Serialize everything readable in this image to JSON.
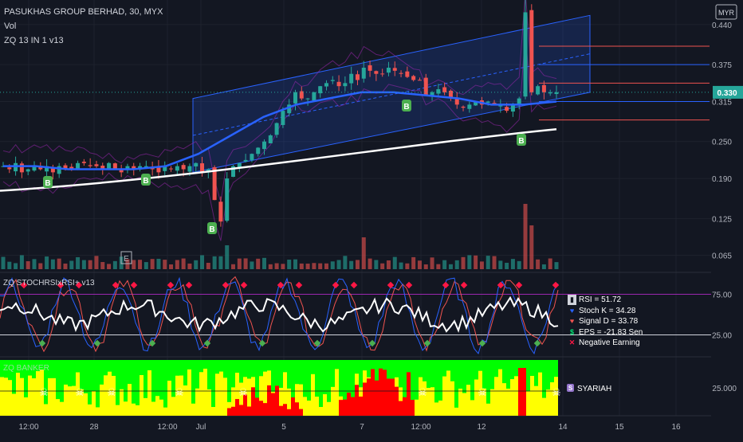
{
  "header": {
    "title": "PASUKHAS GROUP BERHAD, 30, MYX",
    "vol_label": "Vol",
    "indicator": "ZQ 13 IN 1 v13"
  },
  "currency": "MYR",
  "price_axis": {
    "ticks": [
      "0.440",
      "0.375",
      "0.315",
      "0.250",
      "0.190",
      "0.125",
      "0.065"
    ],
    "current_price": "0.330"
  },
  "stoch_pane": {
    "label": "ZQ STOCHRSIxRSI+ v13",
    "ticks": [
      "75.00",
      "25.00"
    ]
  },
  "banker_pane": {
    "label": "ZQ BANKER",
    "tick": "25.000",
    "badge_letter": "S",
    "badge_text": "SYARIAH"
  },
  "legend": {
    "rsi": "RSI = 51.72",
    "stoch_k": "Stoch K = 34.28",
    "signal_d": "Signal D = 33.78",
    "eps": "EPS = -21.83 Sen",
    "neg": "Negative Earning"
  },
  "x_axis": {
    "labels": [
      "12:00",
      "28",
      "12:00",
      "Jul",
      "5",
      "7",
      "12:00",
      "12",
      "14",
      "15",
      "16"
    ]
  },
  "buy_marker": "B",
  "earnings_marker": "E",
  "colors": {
    "background": "#131722",
    "up": "#26a69a",
    "down": "#ef5350",
    "ma_blue": "#2962ff",
    "ma_white": "#ffffff",
    "price_tag": "#26a69a",
    "stoch_k": "#2962ff",
    "stoch_d": "#ef5350",
    "rsi": "#ffffff",
    "banker_green": "#00ff00",
    "banker_yellow": "#ffff00",
    "banker_red": "#ff0000"
  },
  "chart_data": [
    {
      "type": "candlestick",
      "title": "PASUKHAS GROUP BERHAD, 30, MYX",
      "ylim": [
        0.04,
        0.48
      ],
      "y_ticks": [
        0.44,
        0.375,
        0.315,
        0.25,
        0.19,
        0.125,
        0.065
      ],
      "last_price": 0.33,
      "close_path": [
        0.21,
        0.205,
        0.215,
        0.2,
        0.205,
        0.21,
        0.205,
        0.21,
        0.2,
        0.21,
        0.205,
        0.205,
        0.215,
        0.215,
        0.21,
        0.21,
        0.205,
        0.215,
        0.205,
        0.2,
        0.21,
        0.205,
        0.21,
        0.21,
        0.205,
        0.2,
        0.21,
        0.205,
        0.21,
        0.205,
        0.21,
        0.215,
        0.2,
        0.205,
        0.155,
        0.12,
        0.19,
        0.21,
        0.215,
        0.22,
        0.23,
        0.24,
        0.25,
        0.26,
        0.28,
        0.3,
        0.31,
        0.33,
        0.32,
        0.32,
        0.33,
        0.34,
        0.345,
        0.35,
        0.34,
        0.345,
        0.36,
        0.35,
        0.37,
        0.365,
        0.36,
        0.36,
        0.37,
        0.365,
        0.36,
        0.355,
        0.35,
        0.35,
        0.325,
        0.33,
        0.335,
        0.33,
        0.32,
        0.31,
        0.305,
        0.31,
        0.315,
        0.31,
        0.315,
        0.31,
        0.31,
        0.3,
        0.31,
        0.32,
        0.46,
        0.33,
        0.34,
        0.33,
        0.33,
        0.33
      ],
      "series": [
        {
          "name": "",
          "kind": "ma",
          "color": "#ffffff",
          "y_start": 0.17,
          "y_end": 0.27
        },
        {
          "name": "",
          "kind": "ma",
          "color": "#2962ff",
          "values": [
            0.21,
            0.21,
            0.205,
            0.205,
            0.205,
            0.21,
            0.23,
            0.26,
            0.29,
            0.31,
            0.32,
            0.33,
            0.33,
            0.325,
            0.32,
            0.31,
            0.31,
            0.315
          ]
        }
      ],
      "channel": {
        "lower": [
          0.2,
          0.33
        ],
        "upper": [
          0.32,
          0.455
        ],
        "start_index": 38,
        "end_index": 89
      },
      "horizontal_levels": [
        0.405,
        0.375,
        0.345,
        0.315,
        0.285
      ]
    },
    {
      "type": "bar",
      "title": "Vol",
      "bars": 90,
      "spike_indexes": [
        36,
        58,
        84,
        85
      ],
      "earnings_marker_index": 27
    },
    {
      "type": "line",
      "title": "ZQ STOCHRSIxRSI+ v13",
      "ylim": [
        0,
        100
      ],
      "y_ticks": [
        75,
        25
      ],
      "series": [
        {
          "name": "RSI",
          "color": "#ffffff",
          "last": 51.72
        },
        {
          "name": "Stoch K",
          "color": "#2962ff",
          "last": 34.28
        },
        {
          "name": "Signal D",
          "color": "#ef5350",
          "last": 33.78
        }
      ],
      "eps_sen": -21.83
    },
    {
      "type": "area",
      "title": "ZQ BANKER",
      "y_ticks": [
        25
      ],
      "note": "SYARIAH"
    }
  ]
}
